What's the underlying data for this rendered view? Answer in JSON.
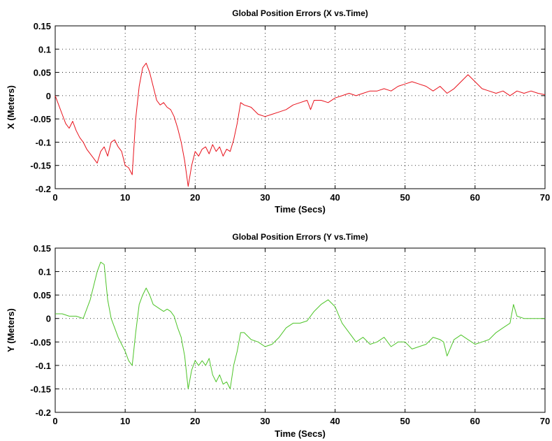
{
  "chart_data": [
    {
      "id": "x",
      "type": "line",
      "title": "Global Position Errors (X vs.Time)",
      "xlabel": "Time (Secs)",
      "ylabel": "X (Meters)",
      "xlim": [
        0,
        70
      ],
      "ylim": [
        -0.2,
        0.15
      ],
      "xticks": [
        0,
        10,
        20,
        30,
        40,
        50,
        60,
        70
      ],
      "yticks": [
        -0.2,
        -0.15,
        -0.1,
        -0.05,
        0,
        0.05,
        0.1,
        0.15
      ],
      "xtick_labels": [
        "0",
        "10",
        "20",
        "30",
        "40",
        "50",
        "60",
        "70"
      ],
      "ytick_labels": [
        "-0.2",
        "-0.15",
        "-0.1",
        "-0.05",
        "0",
        "0.05",
        "0.1",
        "0.15"
      ],
      "grid": true,
      "color": "#e8111b",
      "series": [
        {
          "x": [
            0,
            0.5,
            1,
            1.5,
            2,
            2.5,
            3,
            3.5,
            4,
            4.5,
            5,
            5.5,
            6,
            6.5,
            7,
            7.5,
            8,
            8.5,
            9,
            9.5,
            10,
            10.5,
            11,
            11.5,
            12,
            12.5,
            13,
            13.5,
            14,
            14.5,
            15,
            15.5,
            16,
            16.5,
            17,
            17.5,
            18,
            18.5,
            19,
            19.5,
            20,
            20.5,
            21,
            21.5,
            22,
            22.5,
            23,
            23.5,
            24,
            24.5,
            25,
            25.5,
            26,
            26.5,
            27,
            28,
            29,
            30,
            31,
            32,
            33,
            34,
            35,
            36,
            36.5,
            37,
            38,
            39,
            40,
            41,
            42,
            43,
            44,
            45,
            46,
            47,
            48,
            49,
            50,
            51,
            52,
            53,
            54,
            55,
            56,
            57,
            58,
            59,
            60,
            61,
            62,
            63,
            64,
            65,
            66,
            67,
            68,
            69,
            70
          ],
          "y": [
            0,
            -0.02,
            -0.04,
            -0.06,
            -0.07,
            -0.055,
            -0.075,
            -0.09,
            -0.1,
            -0.115,
            -0.125,
            -0.135,
            -0.145,
            -0.12,
            -0.11,
            -0.13,
            -0.1,
            -0.095,
            -0.11,
            -0.12,
            -0.15,
            -0.155,
            -0.17,
            -0.05,
            0.02,
            0.06,
            0.07,
            0.05,
            0.02,
            -0.01,
            -0.02,
            -0.015,
            -0.025,
            -0.03,
            -0.045,
            -0.07,
            -0.1,
            -0.14,
            -0.195,
            -0.15,
            -0.12,
            -0.13,
            -0.115,
            -0.11,
            -0.125,
            -0.105,
            -0.12,
            -0.11,
            -0.13,
            -0.115,
            -0.12,
            -0.095,
            -0.06,
            -0.015,
            -0.02,
            -0.025,
            -0.04,
            -0.045,
            -0.04,
            -0.035,
            -0.03,
            -0.02,
            -0.015,
            -0.01,
            -0.03,
            -0.01,
            -0.01,
            -0.015,
            -0.005,
            0,
            0.005,
            0,
            0.005,
            0.01,
            0.01,
            0.015,
            0.01,
            0.02,
            0.025,
            0.03,
            0.025,
            0.02,
            0.01,
            0.02,
            0.005,
            0.015,
            0.03,
            0.045,
            0.03,
            0.015,
            0.01,
            0.005,
            0.01,
            0,
            0.01,
            0.005,
            0.01,
            0.005,
            0.002
          ]
        }
      ]
    },
    {
      "id": "y",
      "type": "line",
      "title": "Global Position Errors (Y vs.Time)",
      "xlabel": "Time (Secs)",
      "ylabel": "Y (Meters)",
      "xlim": [
        0,
        70
      ],
      "ylim": [
        -0.2,
        0.15
      ],
      "xticks": [
        0,
        10,
        20,
        30,
        40,
        50,
        60,
        70
      ],
      "yticks": [
        -0.2,
        -0.15,
        -0.1,
        -0.05,
        0,
        0.05,
        0.1,
        0.15
      ],
      "xtick_labels": [
        "0",
        "10",
        "20",
        "30",
        "40",
        "50",
        "60",
        "70"
      ],
      "ytick_labels": [
        "-0.2",
        "-0.15",
        "-0.1",
        "-0.05",
        "0",
        "0.05",
        "0.1",
        "0.15"
      ],
      "grid": true,
      "color": "#4dc428",
      "series": [
        {
          "x": [
            0,
            1,
            2,
            3,
            4,
            4.5,
            5,
            5.5,
            6,
            6.5,
            7,
            7.5,
            8,
            8.5,
            9,
            9.5,
            10,
            10.5,
            11,
            11.5,
            12,
            12.5,
            13,
            13.5,
            14,
            14.5,
            15,
            15.5,
            16,
            16.5,
            17,
            17.5,
            18,
            18.5,
            19,
            19.5,
            20,
            20.5,
            21,
            21.5,
            22,
            22.5,
            23,
            23.5,
            24,
            24.5,
            25,
            25.5,
            26,
            26.5,
            27,
            28,
            29,
            30,
            31,
            32,
            33,
            34,
            35,
            36,
            37,
            38,
            39,
            40,
            41,
            42,
            43,
            44,
            45,
            46,
            47,
            48,
            49,
            50,
            51,
            52,
            53,
            54,
            55,
            55.5,
            56,
            57,
            58,
            59,
            60,
            61,
            62,
            63,
            64,
            65,
            65.5,
            66,
            67,
            68,
            69,
            70
          ],
          "y": [
            0.01,
            0.01,
            0.005,
            0.005,
            0.0,
            0.02,
            0.04,
            0.07,
            0.1,
            0.12,
            0.115,
            0.04,
            0.0,
            -0.02,
            -0.04,
            -0.055,
            -0.07,
            -0.09,
            -0.1,
            -0.03,
            0.03,
            0.05,
            0.065,
            0.05,
            0.03,
            0.025,
            0.02,
            0.015,
            0.02,
            0.015,
            0.005,
            -0.02,
            -0.04,
            -0.08,
            -0.15,
            -0.11,
            -0.09,
            -0.1,
            -0.09,
            -0.1,
            -0.085,
            -0.12,
            -0.135,
            -0.12,
            -0.14,
            -0.135,
            -0.15,
            -0.1,
            -0.07,
            -0.03,
            -0.03,
            -0.045,
            -0.05,
            -0.06,
            -0.055,
            -0.04,
            -0.02,
            -0.01,
            -0.01,
            -0.005,
            0.015,
            0.03,
            0.04,
            0.025,
            -0.01,
            -0.03,
            -0.05,
            -0.04,
            -0.055,
            -0.05,
            -0.04,
            -0.06,
            -0.05,
            -0.05,
            -0.065,
            -0.06,
            -0.055,
            -0.04,
            -0.045,
            -0.05,
            -0.08,
            -0.045,
            -0.035,
            -0.045,
            -0.055,
            -0.05,
            -0.045,
            -0.03,
            -0.02,
            -0.01,
            0.03,
            0.005,
            0,
            0,
            0,
            0
          ]
        }
      ]
    }
  ]
}
